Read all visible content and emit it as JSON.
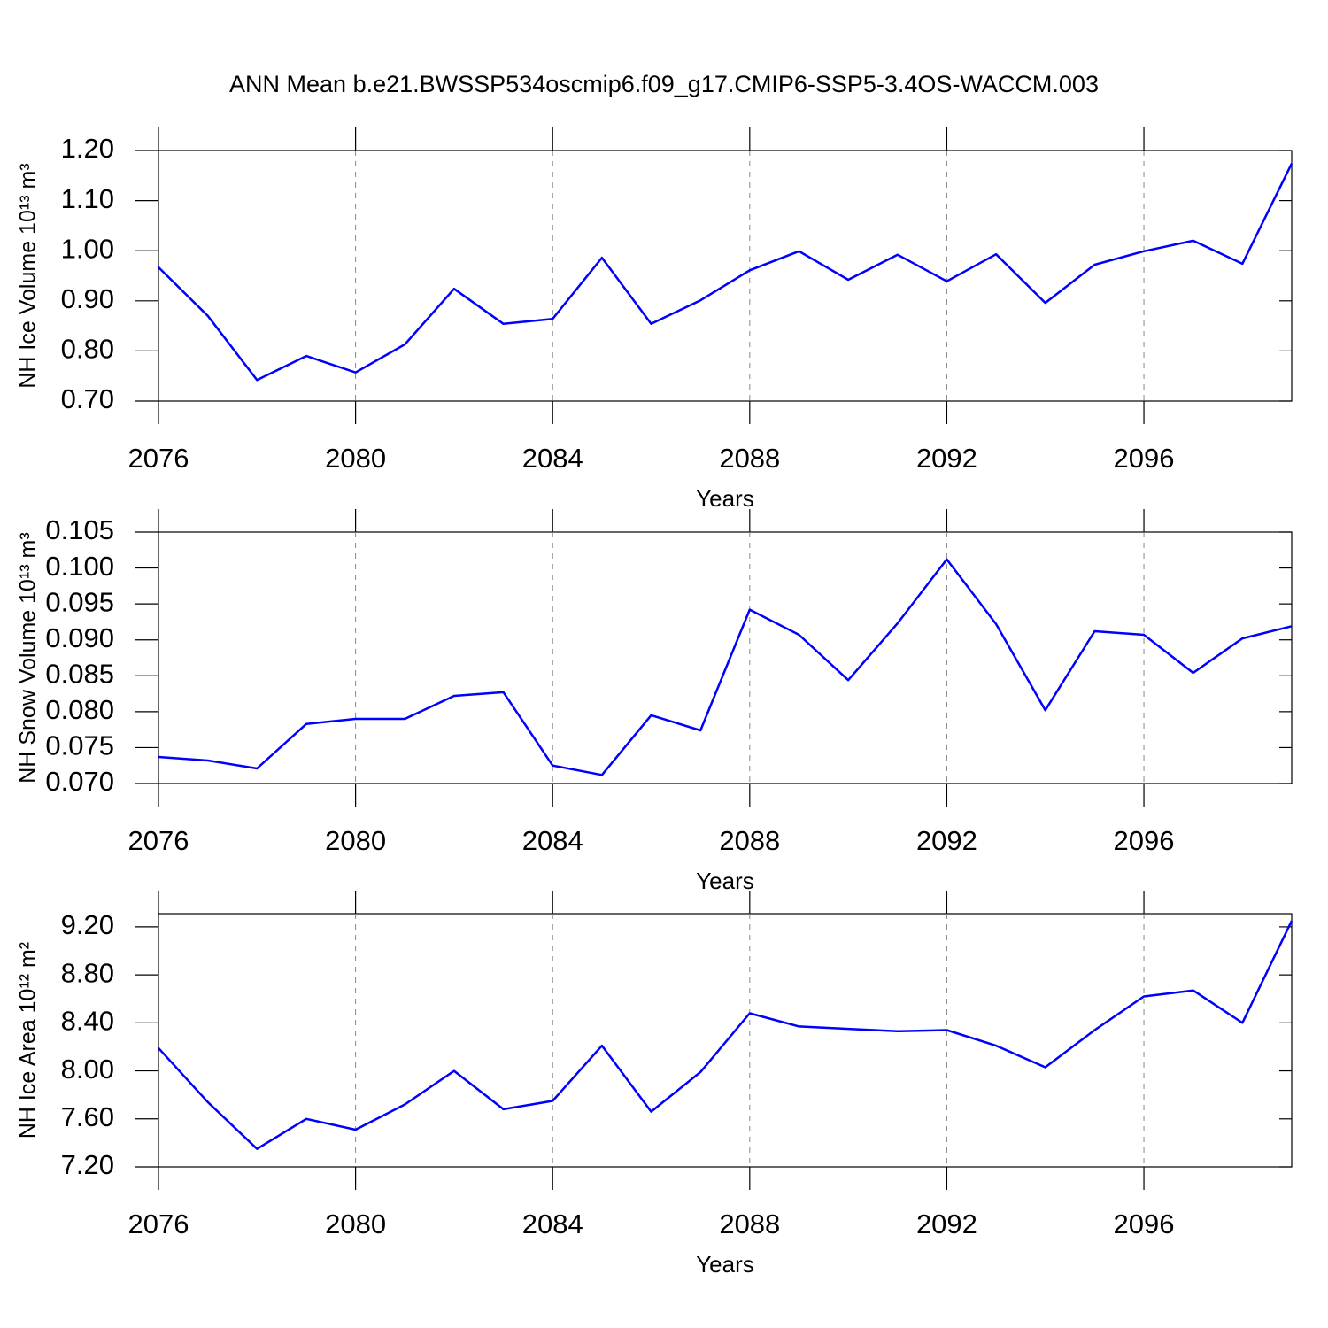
{
  "title": "ANN Mean b.e21.BWSSP534oscmip6.f09_g17.CMIP6-SSP5-3.4OS-WACCM.003",
  "chart_data": [
    {
      "type": "line",
      "y_label": "NH Ice Volume 10¹³ m³",
      "x_label": "Years",
      "color": "#0000ff",
      "grid": "x",
      "x": [
        2076,
        2077,
        2078,
        2079,
        2080,
        2081,
        2082,
        2083,
        2084,
        2085,
        2086,
        2087,
        2088,
        2089,
        2090,
        2091,
        2092,
        2093,
        2094,
        2095,
        2096,
        2097,
        2098,
        2099
      ],
      "values": [
        0.967,
        0.87,
        0.742,
        0.79,
        0.757,
        0.813,
        0.924,
        0.854,
        0.864,
        0.986,
        0.854,
        0.901,
        0.961,
        0.999,
        0.942,
        0.992,
        0.939,
        0.993,
        0.896,
        0.972,
        0.999,
        1.02,
        0.974,
        1.174
      ],
      "xlim": [
        2076,
        2099
      ],
      "xticks": [
        2076,
        2080,
        2084,
        2088,
        2092,
        2096
      ],
      "ylim": [
        0.7,
        1.2
      ],
      "yticks": [
        {
          "value": 0.7,
          "label": "0.70"
        },
        {
          "value": 0.8,
          "label": "0.80"
        },
        {
          "value": 0.9,
          "label": "0.90"
        },
        {
          "value": 1.0,
          "label": "1.00"
        },
        {
          "value": 1.1,
          "label": "1.10"
        },
        {
          "value": 1.2,
          "label": "1.20"
        }
      ]
    },
    {
      "type": "line",
      "y_label": "NH Snow Volume 10¹³ m³",
      "x_label": "Years",
      "color": "#0000ff",
      "grid": "x",
      "x": [
        2076,
        2077,
        2078,
        2079,
        2080,
        2081,
        2082,
        2083,
        2084,
        2085,
        2086,
        2087,
        2088,
        2089,
        2090,
        2091,
        2092,
        2093,
        2094,
        2095,
        2096,
        2097,
        2098,
        2099
      ],
      "values": [
        0.0737,
        0.0732,
        0.0721,
        0.0783,
        0.079,
        0.079,
        0.0822,
        0.0827,
        0.0725,
        0.0712,
        0.0795,
        0.0774,
        0.0942,
        0.0907,
        0.0844,
        0.0923,
        0.1012,
        0.0922,
        0.0802,
        0.0912,
        0.0907,
        0.0854,
        0.0902,
        0.0919
      ],
      "xlim": [
        2076,
        2099
      ],
      "xticks": [
        2076,
        2080,
        2084,
        2088,
        2092,
        2096
      ],
      "ylim": [
        0.07,
        0.105
      ],
      "yticks": [
        {
          "value": 0.07,
          "label": "0.070"
        },
        {
          "value": 0.075,
          "label": "0.075"
        },
        {
          "value": 0.08,
          "label": "0.080"
        },
        {
          "value": 0.085,
          "label": "0.085"
        },
        {
          "value": 0.09,
          "label": "0.090"
        },
        {
          "value": 0.095,
          "label": "0.095"
        },
        {
          "value": 0.1,
          "label": "0.100"
        },
        {
          "value": 0.105,
          "label": "0.105"
        }
      ]
    },
    {
      "type": "line",
      "y_label": "NH Ice Area 10¹² m²",
      "x_label": "Years",
      "color": "#0000ff",
      "grid": "x",
      "x": [
        2076,
        2077,
        2078,
        2079,
        2080,
        2081,
        2082,
        2083,
        2084,
        2085,
        2086,
        2087,
        2088,
        2089,
        2090,
        2091,
        2092,
        2093,
        2094,
        2095,
        2096,
        2097,
        2098,
        2099
      ],
      "values": [
        8.19,
        7.74,
        7.35,
        7.6,
        7.51,
        7.72,
        8.0,
        7.68,
        7.75,
        8.21,
        7.66,
        7.99,
        8.48,
        8.37,
        8.35,
        8.33,
        8.34,
        8.21,
        8.03,
        8.34,
        8.62,
        8.67,
        8.4,
        9.25
      ],
      "xlim": [
        2076,
        2099
      ],
      "xticks": [
        2076,
        2080,
        2084,
        2088,
        2092,
        2096
      ],
      "ylim": [
        7.2,
        9.31
      ],
      "yticks": [
        {
          "value": 7.2,
          "label": "7.20"
        },
        {
          "value": 7.6,
          "label": "7.60"
        },
        {
          "value": 8.0,
          "label": "8.00"
        },
        {
          "value": 8.4,
          "label": "8.40"
        },
        {
          "value": 8.8,
          "label": "8.80"
        },
        {
          "value": 9.2,
          "label": "9.20"
        }
      ]
    }
  ]
}
